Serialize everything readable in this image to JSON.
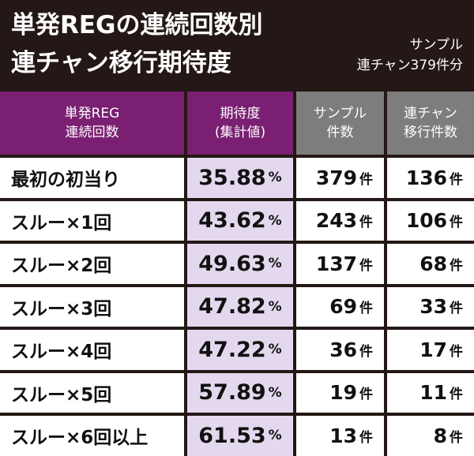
{
  "header": {
    "title_lines": [
      "単発REGの連続回数別",
      "連チャン移行期待度"
    ],
    "note_lines": [
      "サンプル",
      "連チャン379件分"
    ]
  },
  "table": {
    "columns": [
      [
        "単発REG",
        "連続回数"
      ],
      [
        "期待度",
        "(集計値)"
      ],
      [
        "サンプル",
        "件数"
      ],
      [
        "連チャン",
        "移行件数"
      ]
    ],
    "rows": [
      {
        "label": "最初の初当り",
        "rate": {
          "num": "35.88",
          "unit": "%"
        },
        "samples": {
          "num": "379",
          "unit": "件"
        },
        "chains": {
          "num": "136",
          "unit": "件"
        }
      },
      {
        "label": "スルー×1回",
        "rate": {
          "num": "43.62",
          "unit": "%"
        },
        "samples": {
          "num": "243",
          "unit": "件"
        },
        "chains": {
          "num": "106",
          "unit": "件"
        }
      },
      {
        "label": "スルー×2回",
        "rate": {
          "num": "49.63",
          "unit": "%"
        },
        "samples": {
          "num": "137",
          "unit": "件"
        },
        "chains": {
          "num": "68",
          "unit": "件"
        }
      },
      {
        "label": "スルー×3回",
        "rate": {
          "num": "47.82",
          "unit": "%"
        },
        "samples": {
          "num": "69",
          "unit": "件"
        },
        "chains": {
          "num": "33",
          "unit": "件"
        }
      },
      {
        "label": "スルー×4回",
        "rate": {
          "num": "47.22",
          "unit": "%"
        },
        "samples": {
          "num": "36",
          "unit": "件"
        },
        "chains": {
          "num": "17",
          "unit": "件"
        }
      },
      {
        "label": "スルー×5回",
        "rate": {
          "num": "57.89",
          "unit": "%"
        },
        "samples": {
          "num": "19",
          "unit": "件"
        },
        "chains": {
          "num": "11",
          "unit": "件"
        }
      },
      {
        "label": "スルー×6回以上",
        "rate": {
          "num": "61.53",
          "unit": "%"
        },
        "samples": {
          "num": "13",
          "unit": "件"
        },
        "chains": {
          "num": "8",
          "unit": "件"
        }
      }
    ]
  }
}
